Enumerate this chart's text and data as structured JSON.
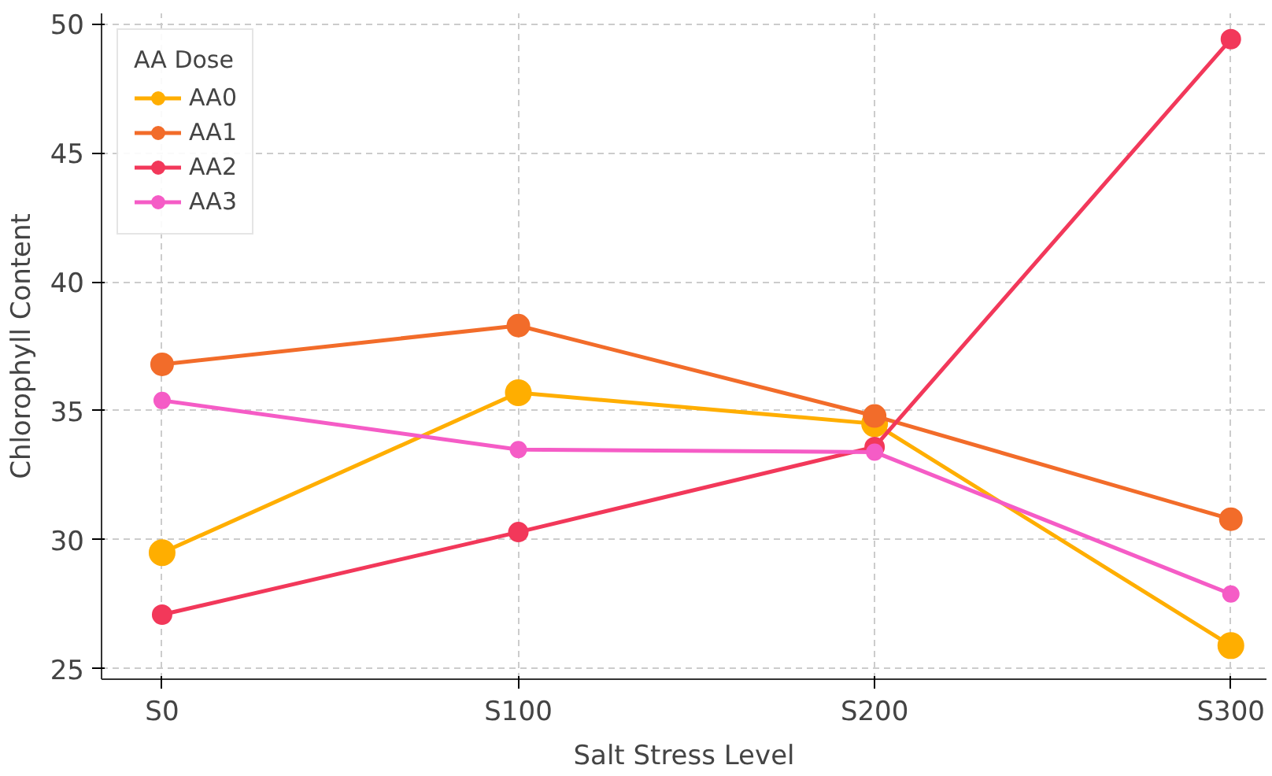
{
  "chart_data": {
    "type": "line",
    "xlabel": "Salt Stress Level",
    "ylabel": "Chlorophyll Content",
    "legend_title": "AA Dose",
    "categories": [
      "S0",
      "S100",
      "S200",
      "S300"
    ],
    "series": [
      {
        "name": "AA0",
        "color": "#ffae00",
        "values": [
          29.5,
          35.7,
          34.5,
          25.9
        ]
      },
      {
        "name": "AA1",
        "color": "#f26c2a",
        "values": [
          36.8,
          38.3,
          34.8,
          30.8
        ]
      },
      {
        "name": "AA2",
        "color": "#f2385a",
        "values": [
          27.1,
          30.3,
          33.6,
          49.4
        ]
      },
      {
        "name": "AA3",
        "color": "#f55cc6",
        "values": [
          35.4,
          33.5,
          33.4,
          27.9
        ]
      }
    ],
    "ylim": [
      24.6,
      50.4
    ],
    "yticks": [
      25,
      30,
      35,
      40,
      45,
      50
    ],
    "grid": true,
    "legend": "top left",
    "marker": "circle",
    "line_style": "solid"
  }
}
